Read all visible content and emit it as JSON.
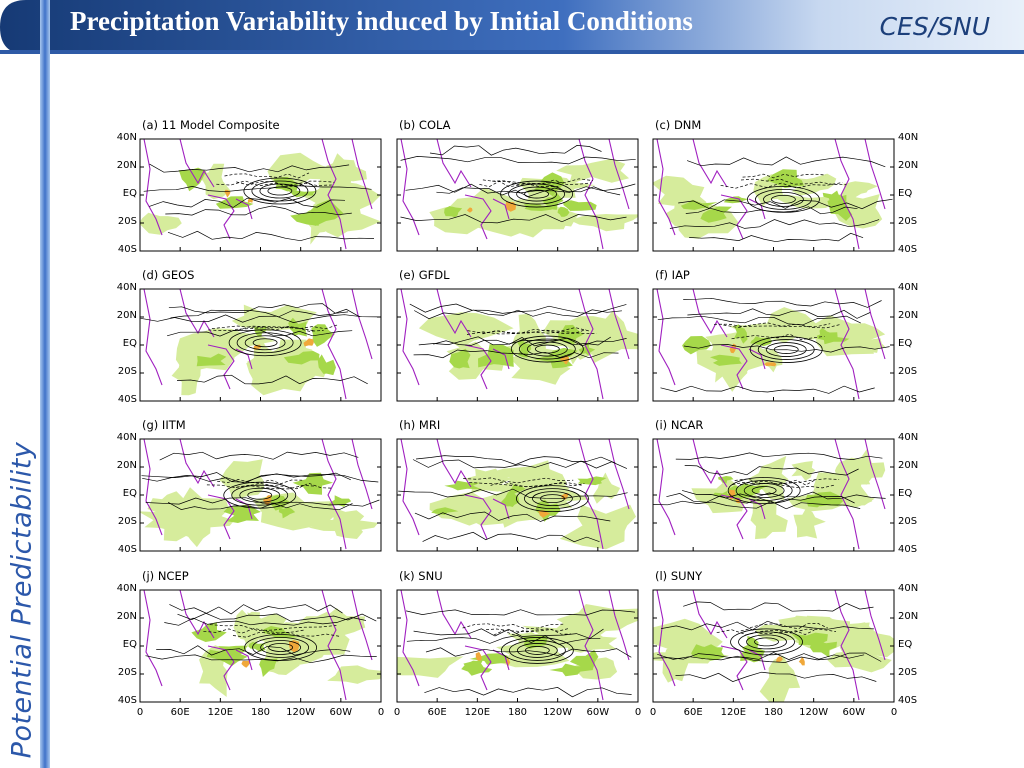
{
  "header": {
    "title": "Precipitation Variability induced by Initial Conditions",
    "org": "CES/SNU"
  },
  "sidebar": {
    "text": "Potential Predictability"
  },
  "colors": {
    "header_dark": "#1b3d78",
    "header_mid": "#4f7fcc",
    "sidebar_blue": "#3f72c8",
    "shade_light": "#d6ec9c",
    "shade_mid": "#a6d84a",
    "shade_peak": "#f0a83a",
    "coastline": "#a020c0",
    "contour": "#000000"
  },
  "figure": {
    "panels": [
      {
        "label": "(a)  11  Model  Composite"
      },
      {
        "label": "(b)  COLA"
      },
      {
        "label": "(c)  DNM"
      },
      {
        "label": "(d)  GEOS"
      },
      {
        "label": "(e)  GFDL"
      },
      {
        "label": "(f)  IAP"
      },
      {
        "label": "(g)  IITM"
      },
      {
        "label": "(h)  MRI"
      },
      {
        "label": "(i)  NCAR"
      },
      {
        "label": "(j)  NCEP"
      },
      {
        "label": "(k)  SNU"
      },
      {
        "label": "(l)  SUNY"
      }
    ],
    "lat_labels": [
      "40N",
      "20N",
      "EQ",
      "20S",
      "40S"
    ],
    "lon_labels": [
      "0",
      "60E",
      "120E",
      "180",
      "120W",
      "60W",
      "0"
    ]
  }
}
